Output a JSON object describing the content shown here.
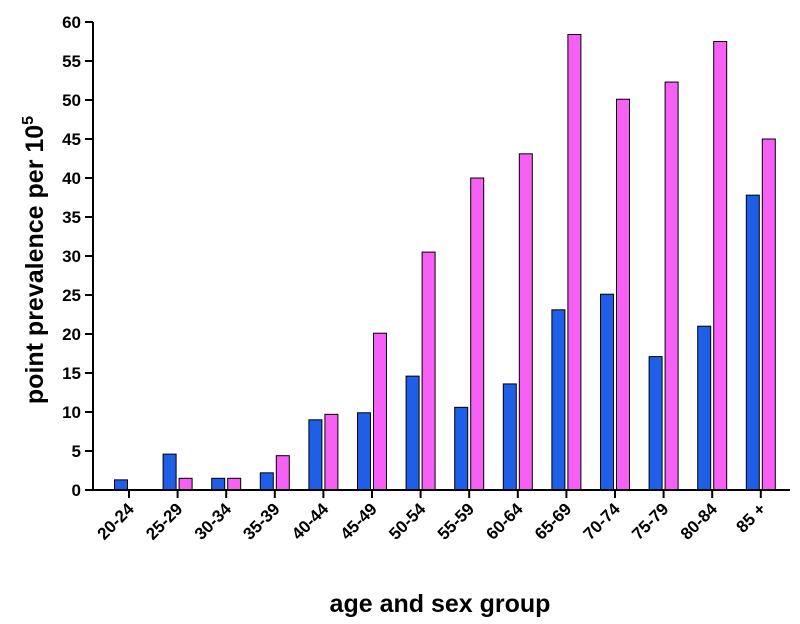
{
  "chart_data": {
    "type": "bar",
    "title": "",
    "xlabel": "age and sex group",
    "ylabel": "point prevalence per 10",
    "ylabel_superscript": "5",
    "ylim": [
      0,
      60
    ],
    "ytick_step": 5,
    "grid": false,
    "legend": "none",
    "categories": [
      "20-24",
      "25-29",
      "30-34",
      "35-39",
      "40-44",
      "45-49",
      "50-54",
      "55-59",
      "60-64",
      "65-69",
      "70-74",
      "75-79",
      "80-84",
      "85 +"
    ],
    "series": [
      {
        "color": "#1f5fe8",
        "values": [
          1.3,
          4.6,
          1.5,
          2.2,
          9.0,
          9.9,
          14.6,
          10.6,
          13.6,
          23.1,
          25.1,
          17.1,
          21.0,
          37.8
        ]
      },
      {
        "color": "#f760f5",
        "values": [
          0,
          1.5,
          1.5,
          4.4,
          9.7,
          20.1,
          30.5,
          40.0,
          43.1,
          58.4,
          50.1,
          52.3,
          57.5,
          45.0
        ]
      }
    ]
  }
}
